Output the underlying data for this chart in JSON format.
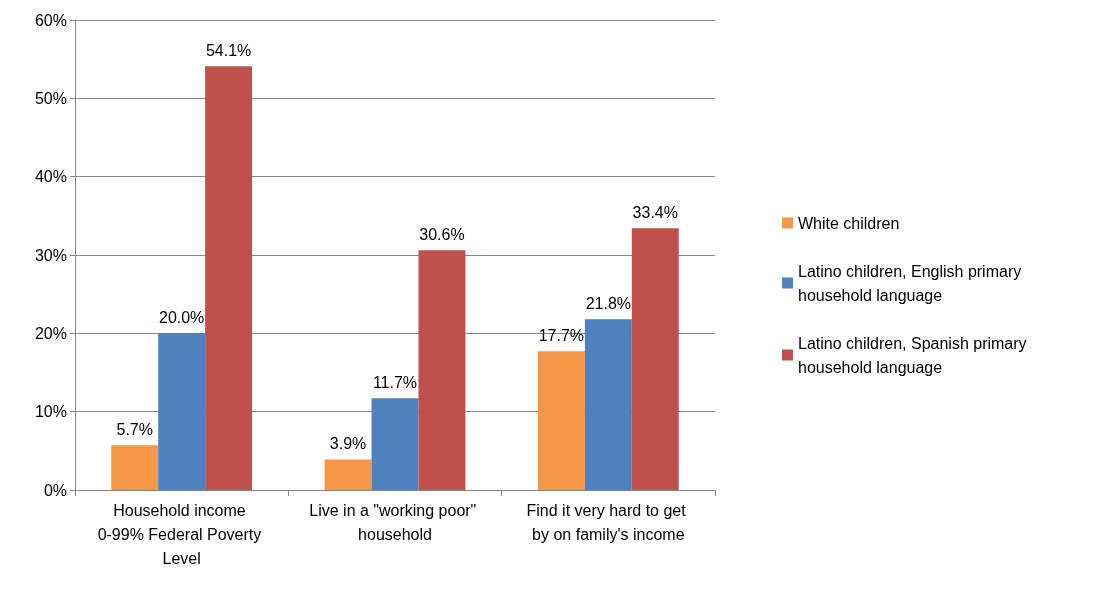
{
  "chart_data": {
    "type": "bar",
    "categories": [
      "Household income 0-99% Federal Poverty Level",
      "Live in a \"working poor\" household",
      "Find it very hard to get by on family's income"
    ],
    "series": [
      {
        "name": "White children",
        "color": "#f79646",
        "values": [
          5.7,
          3.9,
          17.7
        ],
        "value_labels": [
          "5.7%",
          "3.9%",
          "17.7%"
        ]
      },
      {
        "name": "Latino children, English primary household language",
        "color": "#4f81bd",
        "values": [
          20.0,
          11.7,
          21.8
        ],
        "value_labels": [
          "20.0%",
          "11.7%",
          "21.8%"
        ]
      },
      {
        "name": "Latino children, Spanish primary household language",
        "color": "#c0504d",
        "values": [
          54.1,
          30.6,
          33.4
        ],
        "value_labels": [
          "54.1%",
          "30.6%",
          "33.4%"
        ]
      }
    ],
    "ylim": [
      0,
      60
    ],
    "yticks": [
      {
        "value": 0,
        "label": "0%"
      },
      {
        "value": 10,
        "label": "10%"
      },
      {
        "value": 20,
        "label": "20%"
      },
      {
        "value": 30,
        "label": "30%"
      },
      {
        "value": 40,
        "label": "40%"
      },
      {
        "value": 50,
        "label": "50%"
      },
      {
        "value": 60,
        "label": "60%"
      }
    ],
    "grid": "y",
    "legend": "right"
  }
}
